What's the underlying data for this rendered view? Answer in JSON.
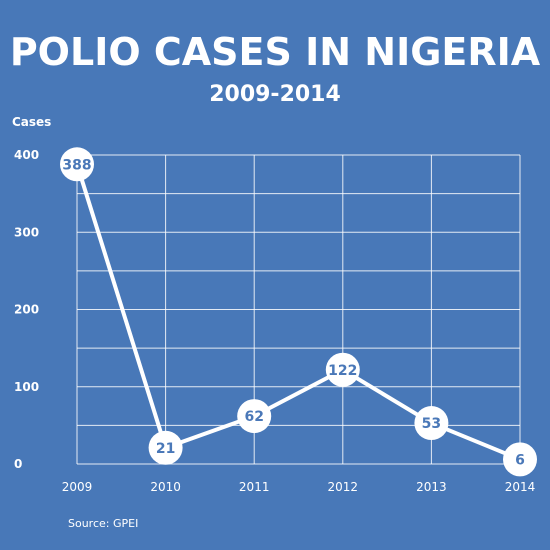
{
  "colors": {
    "background": "#4878b8",
    "line": "#ffffff",
    "grid": "#ffffff",
    "label_text": "#4a78b8"
  },
  "chart_data": {
    "type": "line",
    "title": "POLIO CASES IN NIGERIA",
    "subtitle": "2009-2014",
    "ylabel": "Cases",
    "xlabel": "",
    "x": [
      "2009",
      "2010",
      "2011",
      "2012",
      "2013",
      "2014"
    ],
    "series": [
      {
        "values": [
          388,
          21,
          62,
          122,
          53,
          6
        ]
      }
    ],
    "data_labels": [
      "388",
      "21",
      "62",
      "122",
      "53",
      "6"
    ],
    "ylim": [
      0,
      400
    ],
    "yticks": [
      0,
      100,
      200,
      300,
      400
    ],
    "ytick_labels": [
      "0",
      "100",
      "200",
      "300",
      "400"
    ],
    "grid": true,
    "legend": "none",
    "source": "Source: GPEI"
  }
}
